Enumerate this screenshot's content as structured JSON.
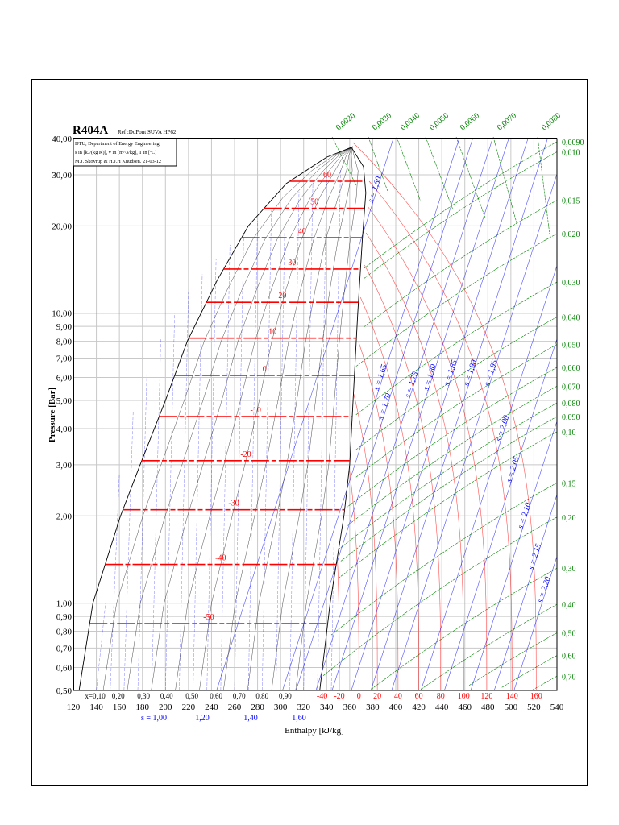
{
  "chart_data": {
    "type": "line",
    "title": "R404A",
    "subtitle": "Ref :DuPont SUVA HP62",
    "info_box": [
      "DTU, Department of Energy Engineering",
      "s in [kJ/(kg K)], v in [m^3/kg], T in [ºC]",
      "M.J. Skovrup & H.J.H Knudsen. 21-03-12"
    ],
    "xlabel": "Enthalpy [kJ/kg]",
    "ylabel": "Pressure [Bar]",
    "xlim": [
      120,
      540
    ],
    "ylim": [
      0.5,
      40
    ],
    "yscale": "log",
    "grid": true,
    "x_ticks": [
      "120",
      "140",
      "160",
      "180",
      "200",
      "220",
      "240",
      "260",
      "280",
      "300",
      "320",
      "340",
      "360",
      "380",
      "400",
      "420",
      "440",
      "460",
      "480",
      "500",
      "520",
      "540"
    ],
    "y_ticks": [
      {
        "v": 40,
        "label": "40,00"
      },
      {
        "v": 30,
        "label": "30,00"
      },
      {
        "v": 20,
        "label": "20,00"
      },
      {
        "v": 10,
        "label": "10,00"
      },
      {
        "v": 9,
        "label": "9,00"
      },
      {
        "v": 8,
        "label": "8,00"
      },
      {
        "v": 7,
        "label": "7,00"
      },
      {
        "v": 6,
        "label": "6,00"
      },
      {
        "v": 5,
        "label": "5,00"
      },
      {
        "v": 4,
        "label": "4,00"
      },
      {
        "v": 3,
        "label": "3,00"
      },
      {
        "v": 2,
        "label": "2,00"
      },
      {
        "v": 1,
        "label": "1,00"
      },
      {
        "v": 0.9,
        "label": "0,90"
      },
      {
        "v": 0.8,
        "label": "0,80"
      },
      {
        "v": 0.7,
        "label": "0,70"
      },
      {
        "v": 0.6,
        "label": "0,60"
      },
      {
        "v": 0.5,
        "label": "0,50"
      }
    ],
    "saturated_liquid": [
      [
        125,
        0.5
      ],
      [
        137,
        1.0
      ],
      [
        161,
        2.0
      ],
      [
        178,
        3.0
      ],
      [
        200,
        5.0
      ],
      [
        219,
        8.0
      ],
      [
        245,
        13.0
      ],
      [
        272,
        20.0
      ],
      [
        305,
        28.0
      ],
      [
        340,
        34.5
      ],
      [
        363,
        37.5
      ]
    ],
    "saturated_vapor": [
      [
        334,
        0.5
      ],
      [
        343,
        1.0
      ],
      [
        355,
        2.0
      ],
      [
        360,
        3.0
      ],
      [
        364,
        6.0
      ],
      [
        367,
        10.0
      ],
      [
        371,
        18.0
      ],
      [
        374,
        26.0
      ],
      [
        372,
        32.0
      ],
      [
        362,
        37.0
      ]
    ],
    "isotherms": [
      {
        "label": "60",
        "p": 28.5
      },
      {
        "label": "50",
        "p": 23.0
      },
      {
        "label": "40",
        "p": 18.2
      },
      {
        "label": "30",
        "p": 14.2
      },
      {
        "label": "20",
        "p": 10.9
      },
      {
        "label": "10",
        "p": 8.2
      },
      {
        "label": "0",
        "p": 6.1
      },
      {
        "label": "-10",
        "p": 4.4
      },
      {
        "label": "-20",
        "p": 3.1
      },
      {
        "label": "-30",
        "p": 2.1
      },
      {
        "label": "-40",
        "p": 1.36
      },
      {
        "label": "-50",
        "p": 0.85
      }
    ],
    "superheat_isotherm_labels": [
      {
        "label": "-40",
        "h": 336
      },
      {
        "label": "-20",
        "h": 351
      },
      {
        "label": "0",
        "h": 368
      },
      {
        "label": "20",
        "h": 384
      },
      {
        "label": "40",
        "h": 402
      },
      {
        "label": "60",
        "h": 420
      },
      {
        "label": "80",
        "h": 439
      },
      {
        "label": "100",
        "h": 459
      },
      {
        "label": "120",
        "h": 479
      },
      {
        "label": "140",
        "h": 501
      },
      {
        "label": "160",
        "h": 522
      }
    ],
    "quality_labels": [
      {
        "label": "x=0,10",
        "h": 139
      },
      {
        "label": "0,20",
        "h": 159
      },
      {
        "label": "0,30",
        "h": 181
      },
      {
        "label": "0,40",
        "h": 201
      },
      {
        "label": "0,50",
        "h": 223
      },
      {
        "label": "0,60",
        "h": 244
      },
      {
        "label": "0,70",
        "h": 264
      },
      {
        "label": "0,80",
        "h": 284
      },
      {
        "label": "0,90",
        "h": 304
      }
    ],
    "entropy_bottom_labels": [
      {
        "label": "s = 1,00",
        "h": 190
      },
      {
        "label": "1,20",
        "h": 232
      },
      {
        "label": "1,40",
        "h": 274
      },
      {
        "label": "1,60",
        "h": 316
      }
    ],
    "entropy_lines": [
      {
        "label": "s = 1,60",
        "h": 380,
        "p": 24
      },
      {
        "label": "s = 1,65",
        "h": 385,
        "p": 5.4
      },
      {
        "label": "s = 1,70",
        "h": 394,
        "p": 5.0
      },
      {
        "label": "s = 1,75",
        "h": 412,
        "p": 5.1
      },
      {
        "label": "s = 1,80",
        "h": 428,
        "p": 5.4
      },
      {
        "label": "s = 1,85",
        "h": 446,
        "p": 5.6
      },
      {
        "label": "s = 1,90",
        "h": 463,
        "p": 5.6
      },
      {
        "label": "s = 1,95",
        "h": 481,
        "p": 5.6
      },
      {
        "label": "s = 2,00",
        "h": 491,
        "p": 3.6
      },
      {
        "label": "s = 2,05",
        "h": 500,
        "p": 2.6
      },
      {
        "label": "s = 2,10",
        "h": 510,
        "p": 1.8
      },
      {
        "label": "s = 2,15",
        "h": 519,
        "p": 1.3
      },
      {
        "label": "s = 2,20",
        "h": 527,
        "p": 1.0
      }
    ],
    "volume_labels_top": [
      "0,0020",
      "0,0030",
      "0,0040",
      "0,0050",
      "0,0060",
      "0,0070",
      "0,0080"
    ],
    "volume_labels_right": [
      {
        "label": "0,0090",
        "p": 39
      },
      {
        "label": "0,010",
        "p": 36
      },
      {
        "label": "0,015",
        "p": 24.5
      },
      {
        "label": "0,020",
        "p": 18.8
      },
      {
        "label": "0,030",
        "p": 12.8
      },
      {
        "label": "0,040",
        "p": 9.7
      },
      {
        "label": "0,050",
        "p": 7.8
      },
      {
        "label": "0,060",
        "p": 6.5
      },
      {
        "label": "0,070",
        "p": 5.6
      },
      {
        "label": "0,080",
        "p": 4.9
      },
      {
        "label": "0,090",
        "p": 4.4
      },
      {
        "label": "0,10",
        "p": 3.9
      },
      {
        "label": "0,15",
        "p": 2.6
      },
      {
        "label": "0,20",
        "p": 1.98
      },
      {
        "label": "0,30",
        "p": 1.32
      },
      {
        "label": "0,40",
        "p": 0.99
      },
      {
        "label": "0,50",
        "p": 0.79
      },
      {
        "label": "0,60",
        "p": 0.66
      },
      {
        "label": "0,70",
        "p": 0.56
      }
    ],
    "colors": {
      "isotherm": "#ff0000",
      "entropy": "#0000ff",
      "volume": "#008000",
      "quality": "#000000",
      "grid": "#c8c8c8"
    }
  }
}
